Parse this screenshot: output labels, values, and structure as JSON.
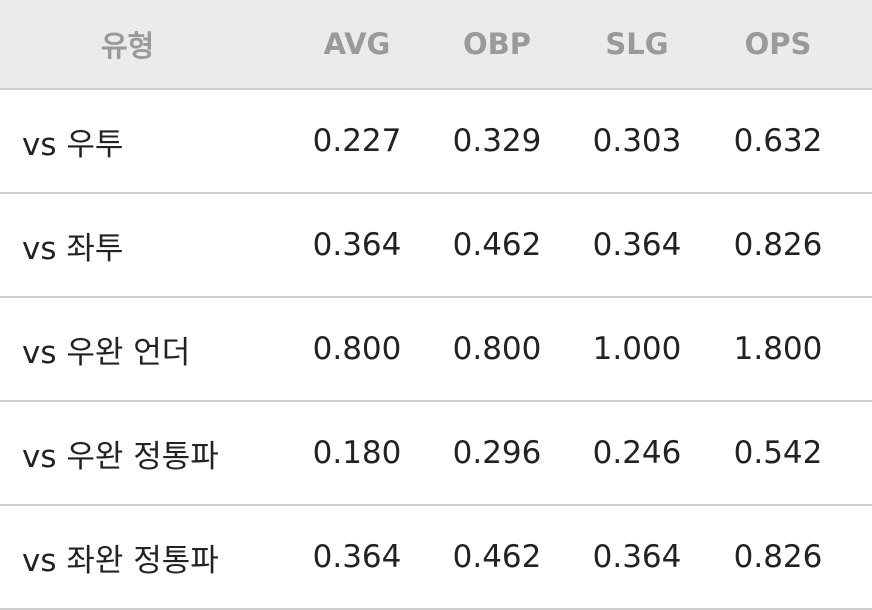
{
  "table": {
    "header": [
      "유형",
      "AVG",
      "OBP",
      "SLG",
      "OPS"
    ],
    "rows": [
      [
        "vs 우투",
        "0.227",
        "0.329",
        "0.303",
        "0.632"
      ],
      [
        "vs 좌투",
        "0.364",
        "0.462",
        "0.364",
        "0.826"
      ],
      [
        "vs 우완 언더",
        "0.800",
        "0.800",
        "1.000",
        "1.800"
      ],
      [
        "vs 우완 정통파",
        "0.180",
        "0.296",
        "0.246",
        "0.542"
      ],
      [
        "vs 좌완 정통파",
        "0.364",
        "0.462",
        "0.364",
        "0.826"
      ]
    ]
  }
}
